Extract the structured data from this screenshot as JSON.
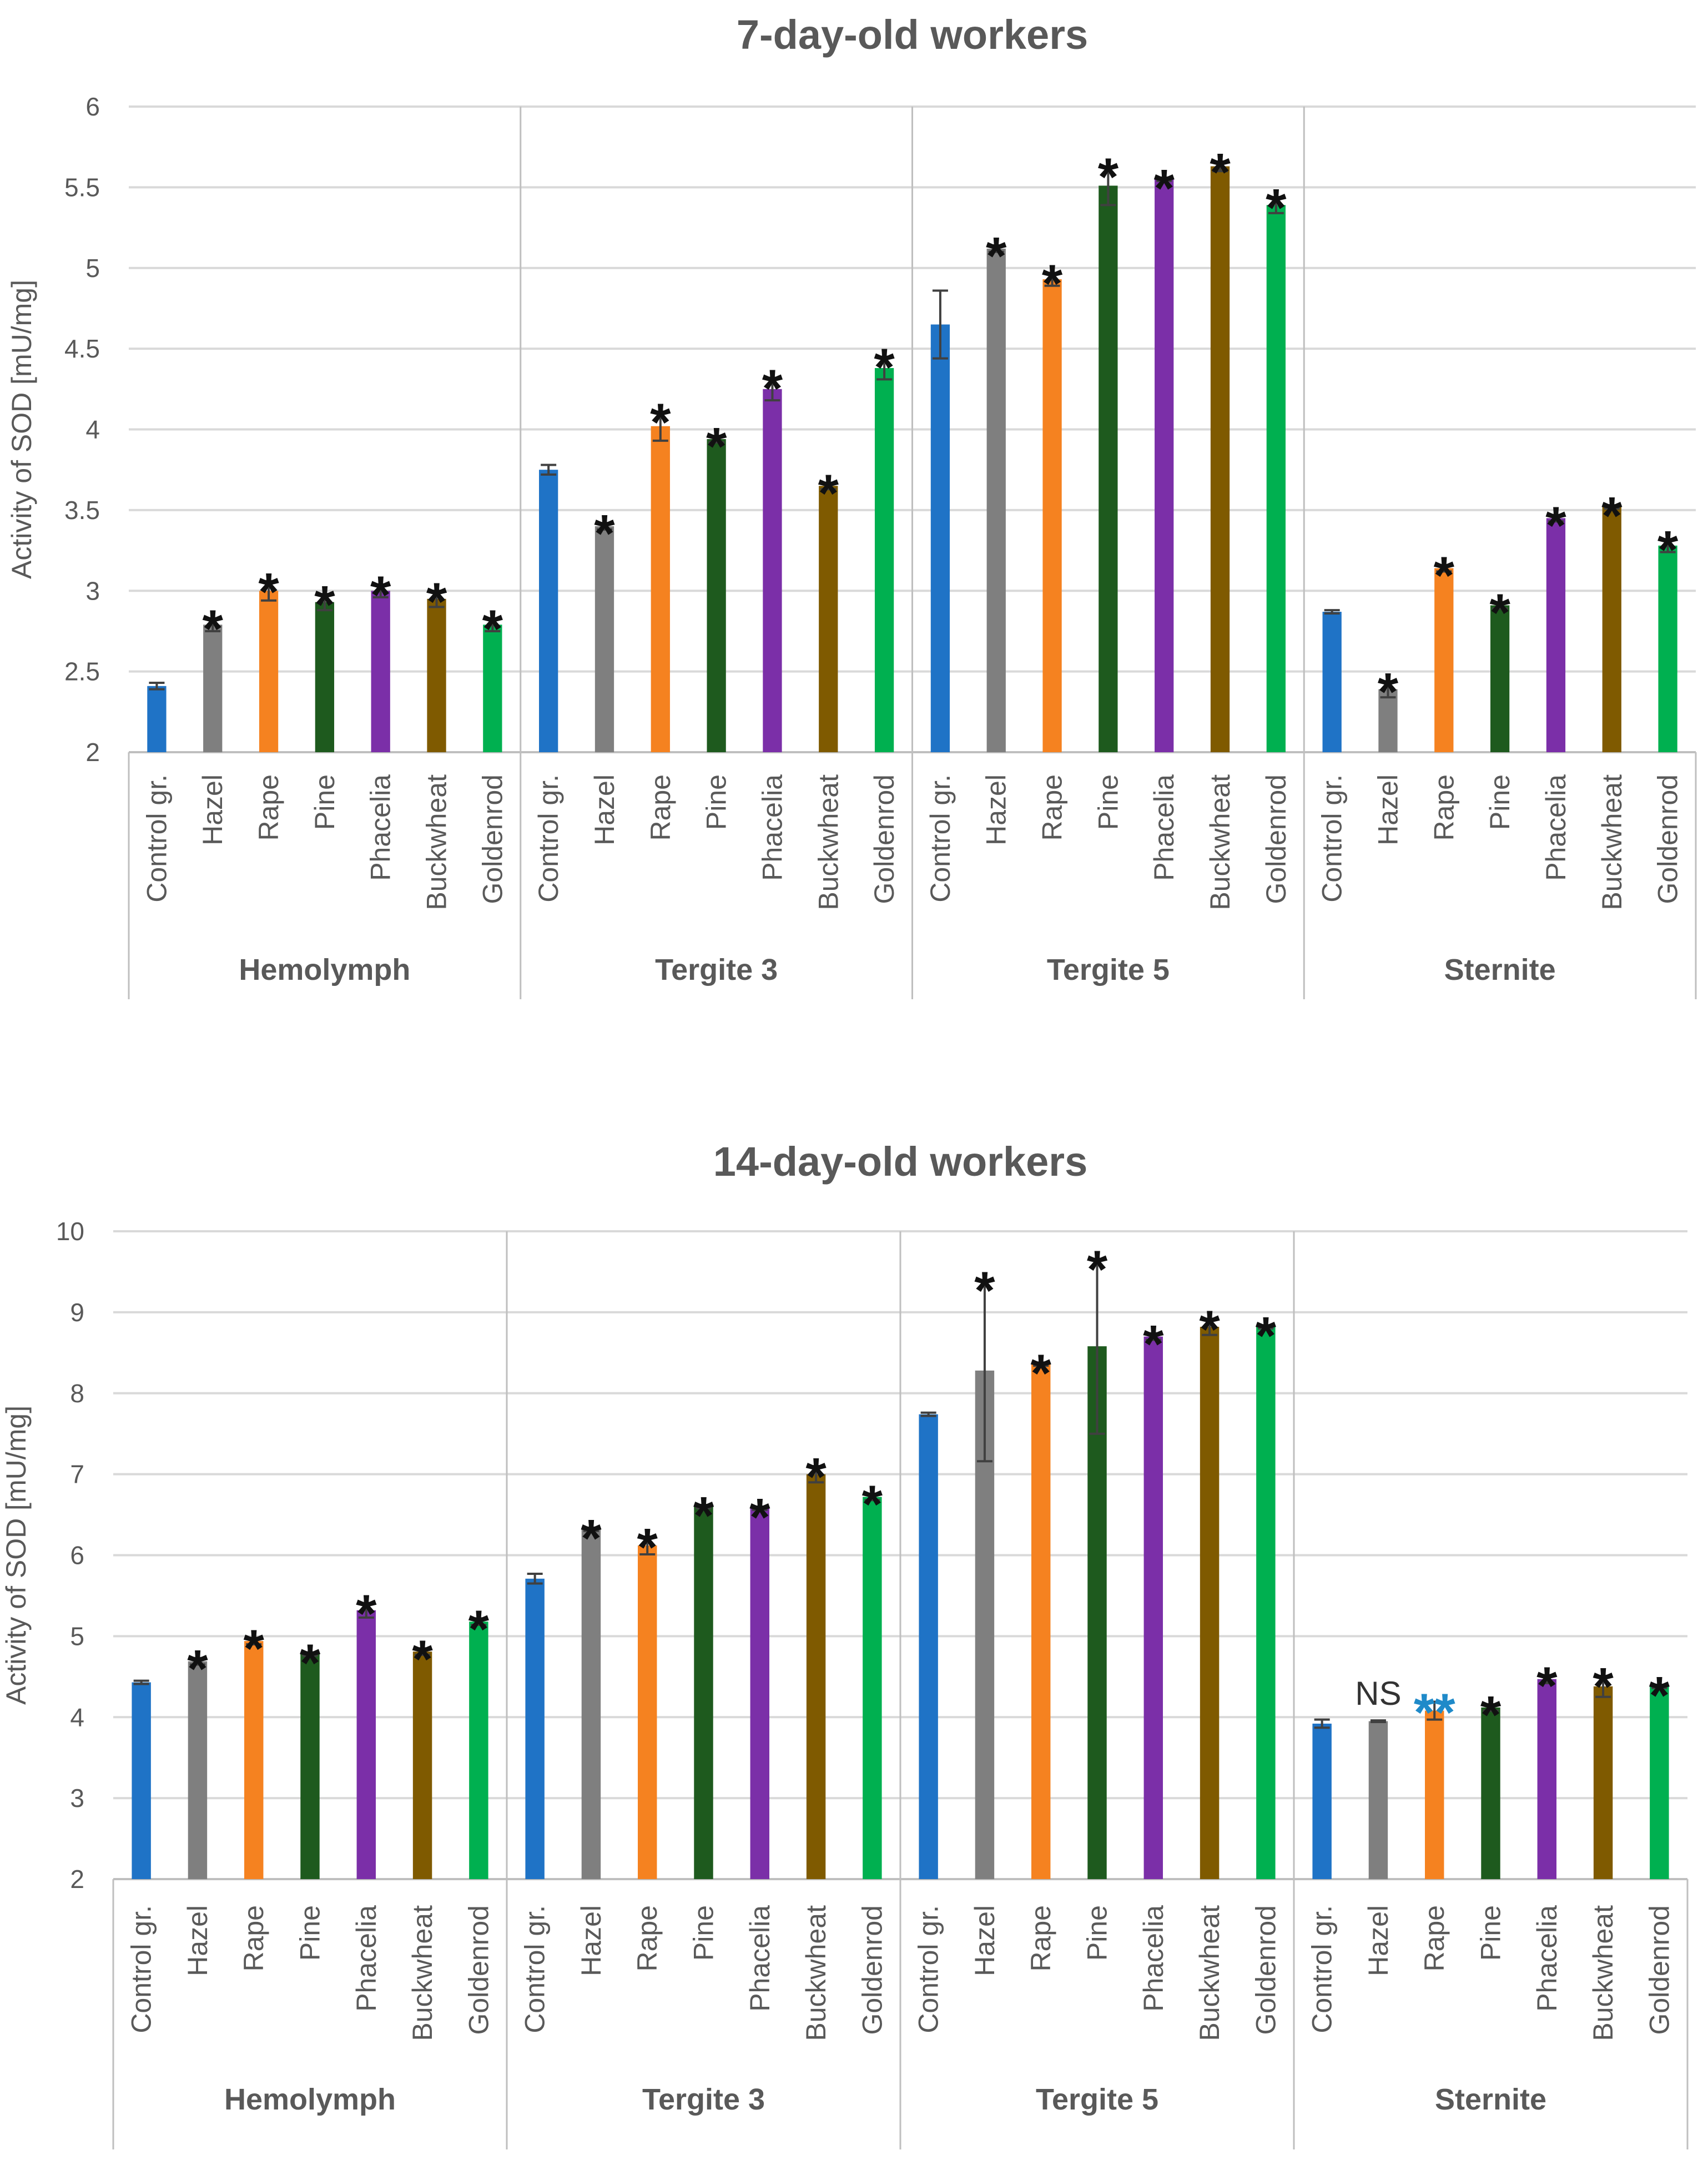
{
  "series_colors": {
    "Control gr.": "#1f73c6",
    "Hazel": "#7f7f7f",
    "Rape": "#f58220",
    "Pine": "#1e5a1e",
    "Phacelia": "#7b2fa8",
    "Buckwheat": "#7f5a00",
    "Goldenrod": "#00b050"
  },
  "chart_data": [
    {
      "type": "bar",
      "title": "7-day-old workers",
      "ylabel": "Activity of SOD [mU/mg]",
      "ylim": [
        2,
        6
      ],
      "yticks": [
        "2",
        "2.5",
        "3",
        "3.5",
        "4",
        "4.5",
        "5",
        "5.5",
        "6"
      ],
      "yticks_values": [
        2,
        2.5,
        3,
        3.5,
        4,
        4.5,
        5,
        5.5,
        6
      ],
      "grid": true,
      "categories": [
        "Control gr.",
        "Hazel",
        "Rape",
        "Pine",
        "Phacelia",
        "Buckwheat",
        "Goldenrod"
      ],
      "groups": [
        {
          "name": "Hemolymph",
          "values": [
            2.41,
            2.79,
            3.0,
            2.93,
            3.0,
            2.95,
            2.79
          ],
          "errors": [
            0.02,
            0.04,
            0.06,
            0.05,
            0.04,
            0.05,
            0.04
          ],
          "marks": [
            "",
            "*",
            "*",
            "*",
            "*",
            "*",
            "*"
          ]
        },
        {
          "name": "Tergite 3",
          "values": [
            3.75,
            3.4,
            4.02,
            3.94,
            4.25,
            3.65,
            4.38
          ],
          "errors": [
            0.03,
            0.02,
            0.09,
            0.02,
            0.07,
            0.02,
            0.07
          ],
          "marks": [
            "",
            "*",
            "*",
            "*",
            "*",
            "*",
            "*"
          ]
        },
        {
          "name": "Tergite 5",
          "values": [
            4.65,
            5.12,
            4.93,
            5.51,
            5.55,
            5.63,
            5.39
          ],
          "errors": [
            0.21,
            0.02,
            0.04,
            0.12,
            0.01,
            0.03,
            0.05
          ],
          "marks": [
            "",
            "*",
            "*",
            "*",
            "*",
            "*",
            "*"
          ]
        },
        {
          "name": "Sternite",
          "values": [
            2.87,
            2.39,
            3.14,
            2.91,
            3.45,
            3.52,
            3.28
          ],
          "errors": [
            0.01,
            0.05,
            0.02,
            0.02,
            0.02,
            0.01,
            0.04
          ],
          "marks": [
            "",
            "*",
            "*",
            "*",
            "*",
            "*",
            "*"
          ]
        }
      ]
    },
    {
      "type": "bar",
      "title": "14-day-old workers",
      "ylabel": "Activity of SOD [mU/mg]",
      "ylim": [
        2,
        10
      ],
      "yticks": [
        "2",
        "3",
        "4",
        "5",
        "6",
        "7",
        "8",
        "9",
        "10"
      ],
      "yticks_values": [
        2,
        3,
        4,
        5,
        6,
        7,
        8,
        9,
        10
      ],
      "grid": true,
      "categories": [
        "Control gr.",
        "Hazel",
        "Rape",
        "Pine",
        "Phacelia",
        "Buckwheat",
        "Goldenrod"
      ],
      "groups": [
        {
          "name": "Hemolymph",
          "values": [
            4.43,
            4.69,
            4.94,
            4.78,
            5.32,
            4.81,
            5.18
          ],
          "errors": [
            0.02,
            0.04,
            0.04,
            0.02,
            0.09,
            0.04,
            0.04
          ],
          "marks": [
            "",
            "*",
            "*",
            "*",
            "*",
            "*",
            "*"
          ]
        },
        {
          "name": "Tergite 3",
          "values": [
            5.71,
            6.32,
            6.12,
            6.6,
            6.58,
            7.0,
            6.72
          ],
          "errors": [
            0.06,
            0.02,
            0.11,
            0.02,
            0.02,
            0.1,
            0.04
          ],
          "marks": [
            "",
            "*",
            "*",
            "*",
            "*",
            "*",
            "*"
          ]
        },
        {
          "name": "Tergite 5",
          "values": [
            7.74,
            8.28,
            8.36,
            8.58,
            8.7,
            8.82,
            8.82
          ],
          "errors": [
            0.02,
            1.12,
            0.02,
            1.08,
            0.04,
            0.1,
            0.02
          ],
          "marks": [
            "",
            "*",
            "*",
            "*",
            "*",
            "*",
            "*"
          ]
        },
        {
          "name": "Sternite",
          "values": [
            3.92,
            3.95,
            4.08,
            4.12,
            4.47,
            4.38,
            4.38
          ],
          "errors": [
            0.05,
            0.01,
            0.11,
            0.04,
            0.05,
            0.13,
            0.02
          ],
          "marks": [
            "",
            "NS",
            "**",
            "*",
            "*",
            "*",
            "*"
          ],
          "mark_colors": [
            "",
            "#333333",
            "#1f8ac9",
            "#111111",
            "#111111",
            "#111111",
            "#111111"
          ]
        }
      ]
    }
  ]
}
